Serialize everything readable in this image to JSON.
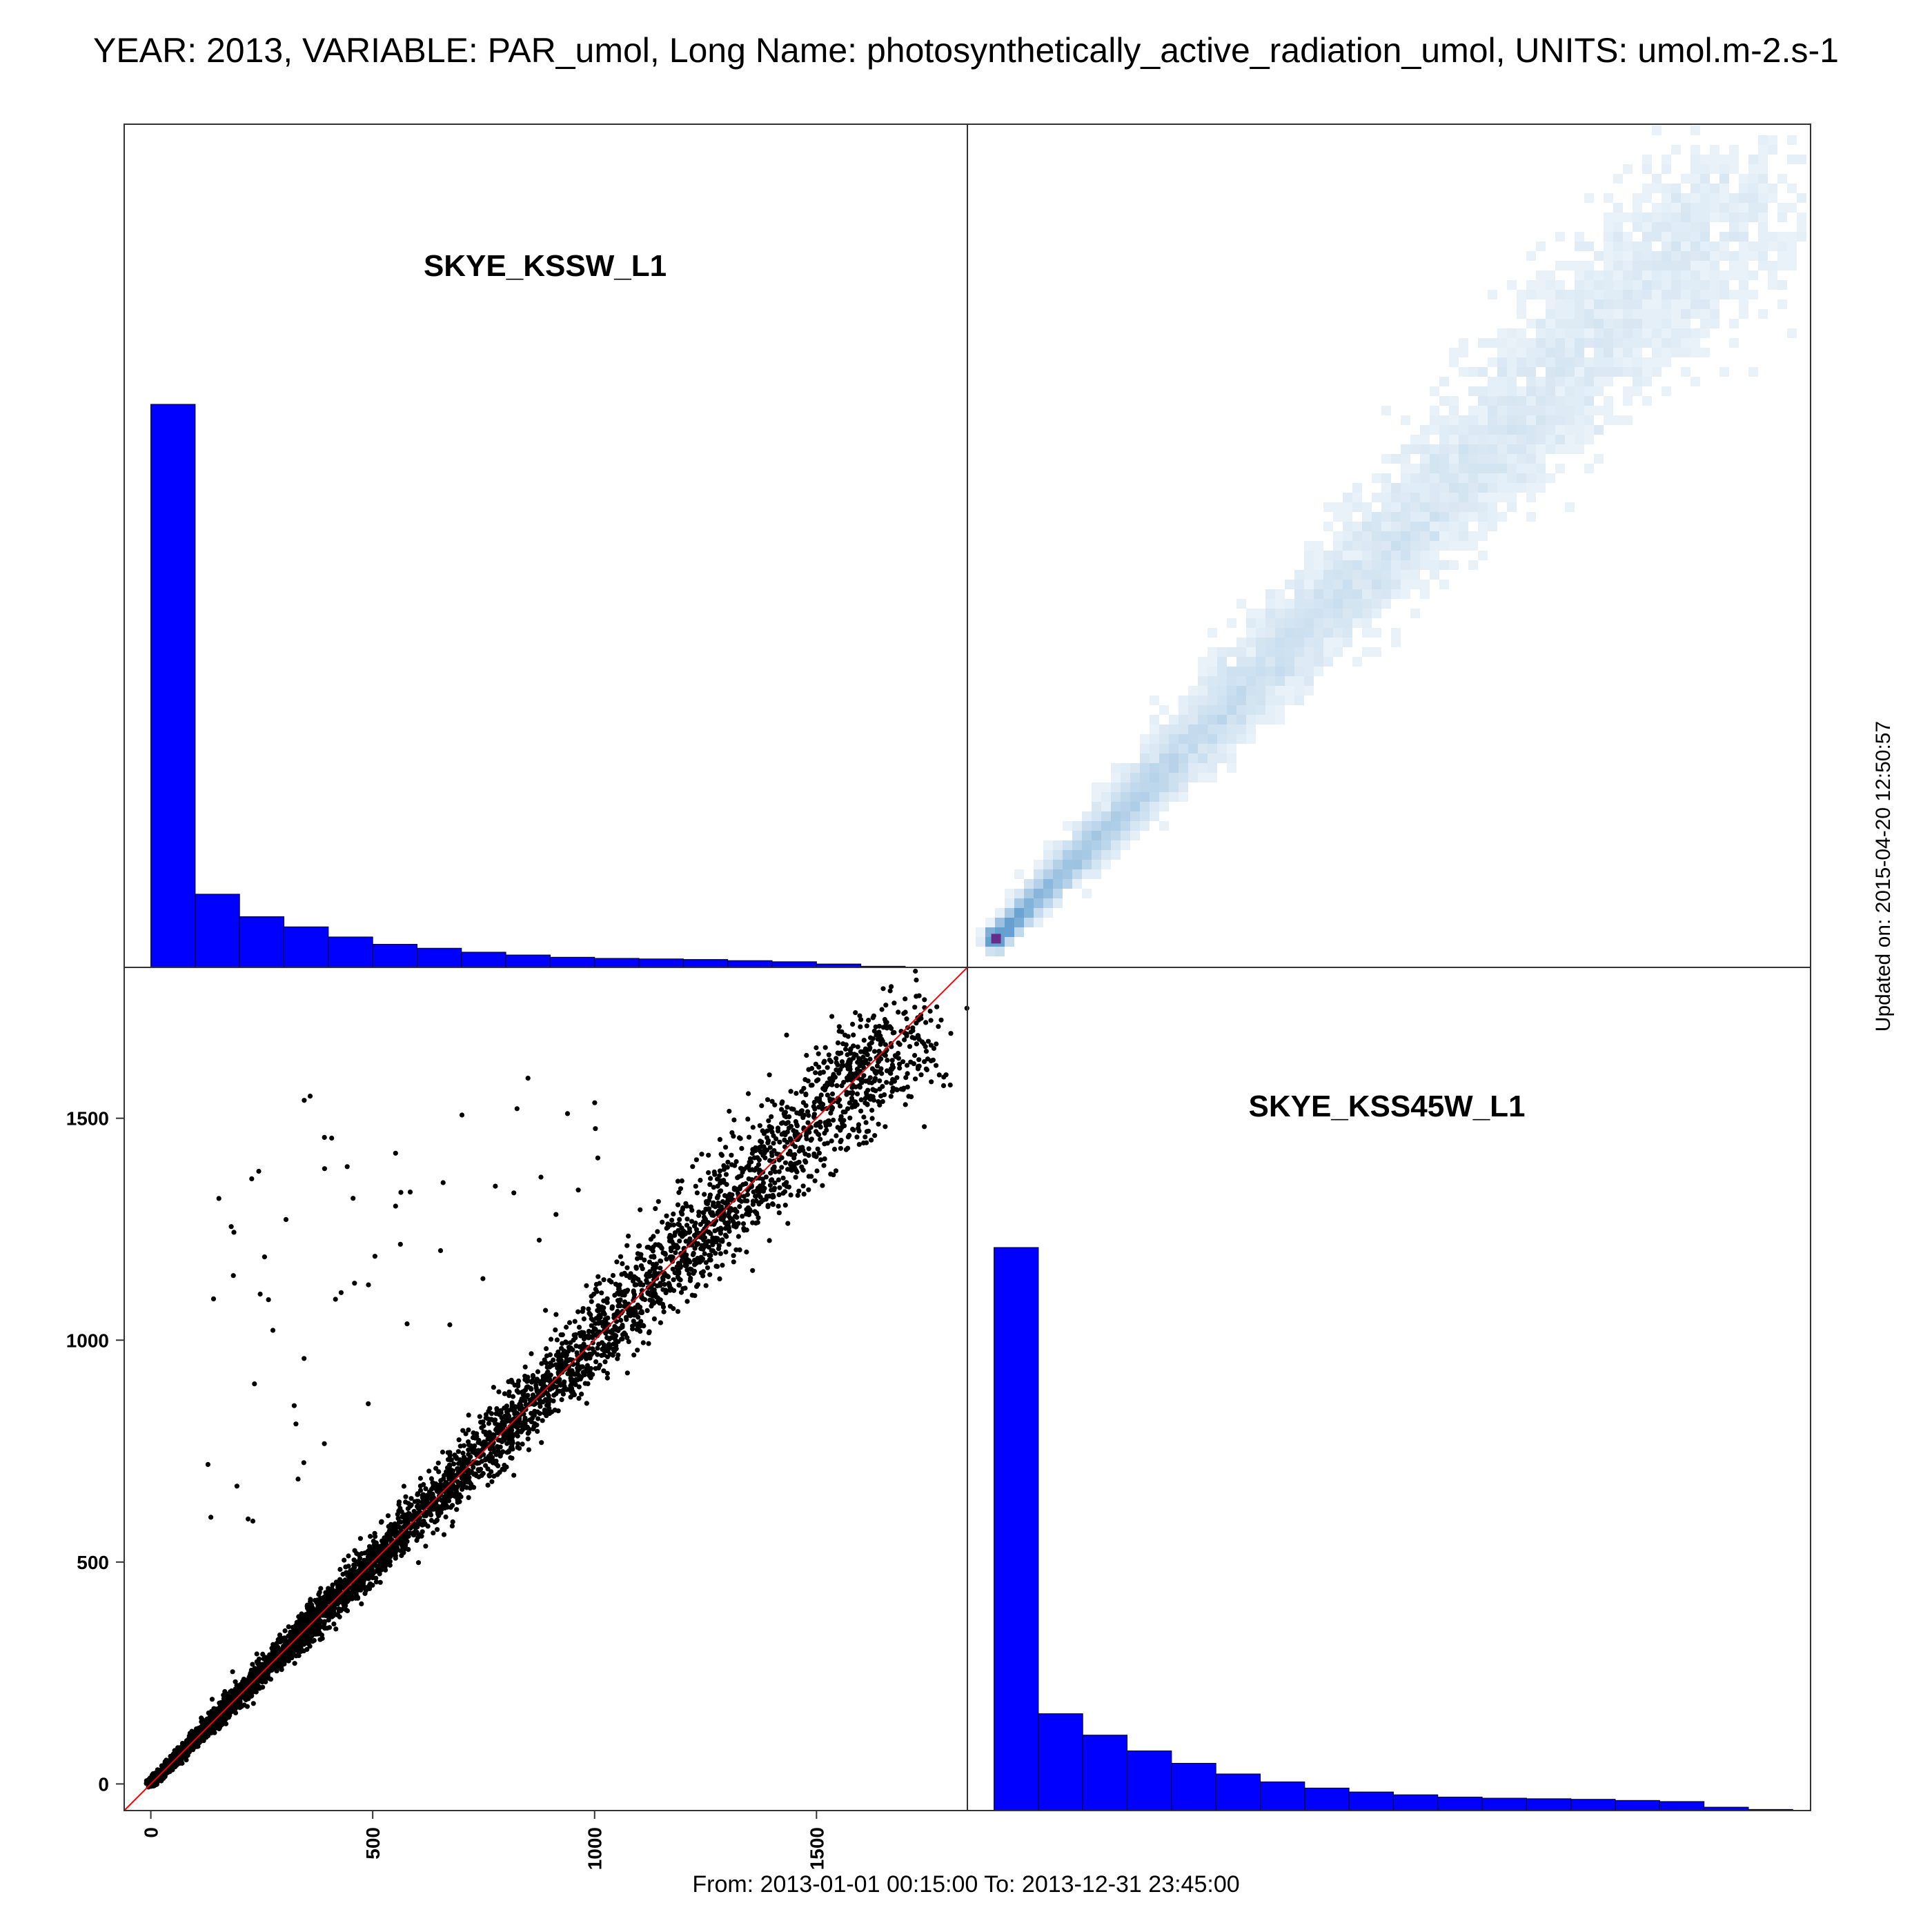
{
  "title": "YEAR: 2013, VARIABLE: PAR_umol, Long Name: photosynthetically_active_radiation_umol, UNITS: umol.m-2.s-1",
  "footer": "From: 2013-01-01 00:15:00 To: 2013-12-31 23:45:00",
  "updated": "Updated on: 2015-04-20 12:50:57",
  "colors": {
    "histogram": "#0000ff",
    "diagonal_line": "#ff0000",
    "points": "#000000",
    "density": "#4a90c8"
  },
  "chart_data": {
    "type": "scatter-matrix",
    "variables": [
      "SKYE_KSSW_L1",
      "SKYE_KSS45W_L1"
    ],
    "axis_ticks": [
      0,
      500,
      1000,
      1500
    ],
    "axis_range": [
      -60,
      1840
    ],
    "histograms": [
      {
        "variable": "SKYE_KSSW_L1",
        "type": "bar",
        "bin_edges": [
          0,
          100,
          200,
          300,
          400,
          500,
          600,
          700,
          800,
          900,
          1000,
          1100,
          1200,
          1300,
          1400,
          1500,
          1600,
          1700,
          1800
        ],
        "relative_counts": [
          1.0,
          0.13,
          0.09,
          0.072,
          0.054,
          0.041,
          0.034,
          0.027,
          0.022,
          0.018,
          0.016,
          0.015,
          0.014,
          0.012,
          0.01,
          0.006,
          0.002,
          0.0005
        ]
      },
      {
        "variable": "SKYE_KSS45W_L1",
        "type": "bar",
        "bin_edges": [
          0,
          100,
          200,
          300,
          400,
          500,
          600,
          700,
          800,
          900,
          1000,
          1100,
          1200,
          1300,
          1400,
          1500,
          1600,
          1700,
          1800
        ],
        "relative_counts": [
          1.0,
          0.172,
          0.134,
          0.106,
          0.084,
          0.065,
          0.051,
          0.04,
          0.033,
          0.028,
          0.024,
          0.022,
          0.021,
          0.02,
          0.018,
          0.016,
          0.006,
          0.002
        ]
      }
    ],
    "scatter": {
      "type": "scatter",
      "x_variable": "SKYE_KSSW_L1",
      "y_variable": "SKYE_KSS45W_L1",
      "reference_line": "y = x",
      "xlim": [
        -60,
        1840
      ],
      "ylim": [
        -60,
        1840
      ]
    },
    "density": {
      "type": "heatmap",
      "x_variable": "SKYE_KSSW_L1",
      "y_variable": "SKYE_KSS45W_L1"
    }
  }
}
